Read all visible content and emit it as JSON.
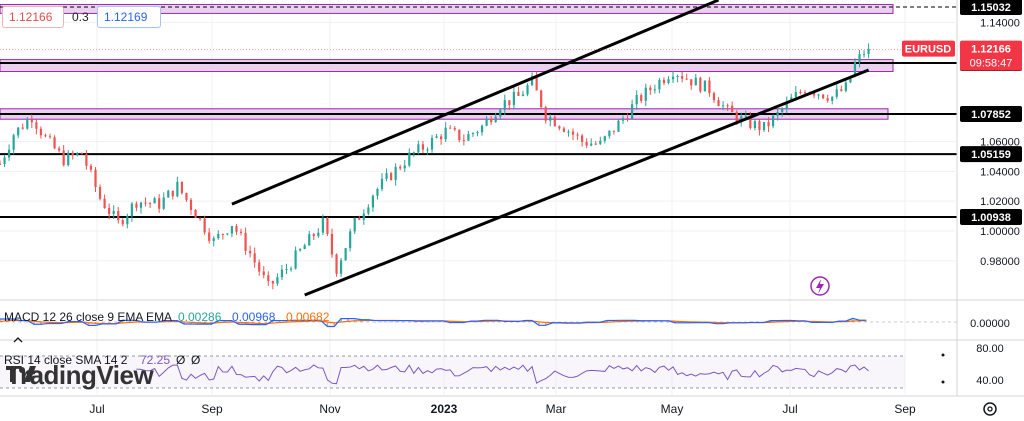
{
  "header": {
    "sell_price": "1.12166",
    "spread": "0.3",
    "buy_price": "1.12169"
  },
  "logo_text": "TradingView",
  "colors": {
    "up": "#26a69a",
    "down": "#ef5350",
    "zone_fill": "#e1bee7",
    "zone_border": "#9c27b0",
    "macd_line": "#2962ff",
    "signal_line": "#ff6d00",
    "rsi_line": "#7e57c2",
    "symbol_tag": "#f23645"
  },
  "chart_data": [
    {
      "type": "candlestick",
      "symbol": "EURUSD",
      "last_price": "1.12166",
      "countdown": "09:58:47",
      "price_axis_ticks": [
        "1.14000",
        "1.06000",
        "1.04000",
        "1.02000",
        "1.00000",
        "0.98000"
      ],
      "time_axis_labels": [
        "Jul",
        "Sep",
        "Nov",
        "2023",
        "Mar",
        "May",
        "Jul",
        "Sep"
      ],
      "ylim": [
        0.955,
        1.155
      ],
      "price_path": [
        {
          "t": 0,
          "p": 1.045
        },
        {
          "t": 6,
          "p": 1.065
        },
        {
          "t": 14,
          "p": 1.077
        },
        {
          "t": 20,
          "p": 1.062
        },
        {
          "t": 28,
          "p": 1.048
        },
        {
          "t": 36,
          "p": 1.052
        },
        {
          "t": 44,
          "p": 1.022
        },
        {
          "t": 52,
          "p": 1.005
        },
        {
          "t": 60,
          "p": 1.02
        },
        {
          "t": 70,
          "p": 1.018
        },
        {
          "t": 78,
          "p": 1.03
        },
        {
          "t": 86,
          "p": 1.012
        },
        {
          "t": 94,
          "p": 0.993
        },
        {
          "t": 102,
          "p": 1.005
        },
        {
          "t": 110,
          "p": 0.985
        },
        {
          "t": 118,
          "p": 0.962
        },
        {
          "t": 126,
          "p": 0.975
        },
        {
          "t": 134,
          "p": 0.99
        },
        {
          "t": 142,
          "p": 1.005
        },
        {
          "t": 148,
          "p": 0.975
        },
        {
          "t": 156,
          "p": 1.005
        },
        {
          "t": 164,
          "p": 1.025
        },
        {
          "t": 172,
          "p": 1.038
        },
        {
          "t": 180,
          "p": 1.05
        },
        {
          "t": 188,
          "p": 1.058
        },
        {
          "t": 196,
          "p": 1.067
        },
        {
          "t": 204,
          "p": 1.062
        },
        {
          "t": 212,
          "p": 1.07
        },
        {
          "t": 220,
          "p": 1.085
        },
        {
          "t": 228,
          "p": 1.09
        },
        {
          "t": 234,
          "p": 1.1
        },
        {
          "t": 240,
          "p": 1.078
        },
        {
          "t": 248,
          "p": 1.07
        },
        {
          "t": 256,
          "p": 1.06
        },
        {
          "t": 264,
          "p": 1.058
        },
        {
          "t": 272,
          "p": 1.072
        },
        {
          "t": 280,
          "p": 1.087
        },
        {
          "t": 288,
          "p": 1.098
        },
        {
          "t": 296,
          "p": 1.108
        },
        {
          "t": 304,
          "p": 1.101
        },
        {
          "t": 312,
          "p": 1.095
        },
        {
          "t": 320,
          "p": 1.08
        },
        {
          "t": 328,
          "p": 1.073
        },
        {
          "t": 336,
          "p": 1.069
        },
        {
          "t": 342,
          "p": 1.078
        },
        {
          "t": 348,
          "p": 1.088
        },
        {
          "t": 354,
          "p": 1.096
        },
        {
          "t": 360,
          "p": 1.093
        },
        {
          "t": 366,
          "p": 1.09
        },
        {
          "t": 372,
          "p": 1.096
        },
        {
          "t": 376,
          "p": 1.112
        },
        {
          "t": 380,
          "p": 1.12
        }
      ],
      "series": [
        {
          "name": "EURUSD",
          "kind": "price"
        },
        {
          "name": "MACD 12 26 close 9 EMA EMA",
          "values_shown": [
            "0.00286",
            "0.00968",
            "0.00682"
          ]
        },
        {
          "name": "RSI 14 close SMA 14 2",
          "values_shown": [
            "72.25",
            "Ø",
            "Ø"
          ]
        }
      ],
      "horizontal_levels": [
        {
          "label": "1.15032",
          "value": 1.15032,
          "style": "dashed"
        },
        {
          "label": "1.11269",
          "value": 1.11269,
          "style": "solid"
        },
        {
          "label": "1.07852",
          "value": 1.07852,
          "style": "solid"
        },
        {
          "label": "1.05159",
          "value": 1.05159,
          "style": "solid"
        },
        {
          "label": "1.00938",
          "value": 1.00938,
          "style": "solid"
        }
      ],
      "zones": [
        {
          "low": 1.146,
          "high": 1.152
        },
        {
          "low": 1.107,
          "high": 1.115
        },
        {
          "low": 1.075,
          "high": 1.082
        }
      ],
      "channel": {
        "upper": [
          {
            "t": 102,
            "p": 1.018
          },
          {
            "t": 316,
            "p": 1.155
          }
        ],
        "lower": [
          {
            "t": 134,
            "p": 0.957
          },
          {
            "t": 382,
            "p": 1.108
          }
        ]
      },
      "macd_axis_ticks": [
        "0.00000"
      ],
      "rsi_axis_ticks": [
        "80.00",
        "40.00"
      ],
      "rsi_ylim": [
        20,
        90
      ],
      "rsi_bands": [
        70,
        30
      ]
    }
  ]
}
